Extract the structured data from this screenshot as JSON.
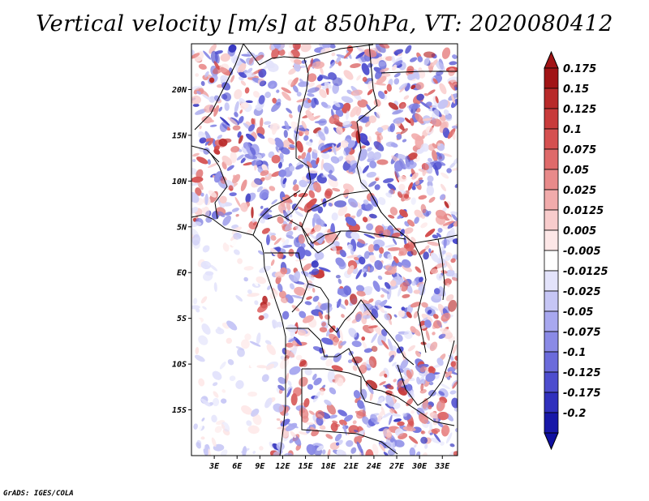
{
  "title": "Vertical velocity [m/s] at 850hPa, VT: 2020080412",
  "footer": "GrADS: IGES/COLA",
  "map": {
    "lon_range": [
      0,
      35
    ],
    "lat_range": [
      -20,
      25
    ],
    "lat_ticks": [
      {
        "value": 20,
        "label": "20N"
      },
      {
        "value": 15,
        "label": "15N"
      },
      {
        "value": 10,
        "label": "10N"
      },
      {
        "value": 5,
        "label": "5N"
      },
      {
        "value": 0,
        "label": "EQ"
      },
      {
        "value": -5,
        "label": "5S"
      },
      {
        "value": -10,
        "label": "10S"
      },
      {
        "value": -15,
        "label": "15S"
      }
    ],
    "lon_ticks": [
      {
        "value": 3,
        "label": "3E"
      },
      {
        "value": 6,
        "label": "6E"
      },
      {
        "value": 9,
        "label": "9E"
      },
      {
        "value": 12,
        "label": "12E"
      },
      {
        "value": 15,
        "label": "15E"
      },
      {
        "value": 18,
        "label": "18E"
      },
      {
        "value": 21,
        "label": "21E"
      },
      {
        "value": 24,
        "label": "24E"
      },
      {
        "value": 27,
        "label": "27E"
      },
      {
        "value": 30,
        "label": "30E"
      },
      {
        "value": 33,
        "label": "33E"
      }
    ]
  },
  "colorbar": {
    "levels": [
      {
        "label": "0.175",
        "color": "#a11416"
      },
      {
        "label": "0.15",
        "color": "#b82a2a"
      },
      {
        "label": "0.125",
        "color": "#c83b3b"
      },
      {
        "label": "0.1",
        "color": "#d55050"
      },
      {
        "label": "0.075",
        "color": "#df6a6a"
      },
      {
        "label": "0.05",
        "color": "#e88a8a"
      },
      {
        "label": "0.025",
        "color": "#f1abab"
      },
      {
        "label": "0.0125",
        "color": "#f8cccc"
      },
      {
        "label": "0.005",
        "color": "#fde7e7"
      },
      {
        "label": "-0.005",
        "color": "#ffffff"
      },
      {
        "label": "-0.0125",
        "color": "#e3e3fb"
      },
      {
        "label": "-0.025",
        "color": "#c6c6f5"
      },
      {
        "label": "-0.05",
        "color": "#a8a8ef"
      },
      {
        "label": "-0.075",
        "color": "#8a8ae6"
      },
      {
        "label": "-0.1",
        "color": "#6b6bdb"
      },
      {
        "label": "-0.125",
        "color": "#4d4dce"
      },
      {
        "label": "-0.175",
        "color": "#3030bd"
      },
      {
        "label": "-0.2",
        "color": "#1818a8"
      }
    ],
    "top_triangle_color": "#a11416",
    "bottom_triangle_color": "#1010a0"
  }
}
